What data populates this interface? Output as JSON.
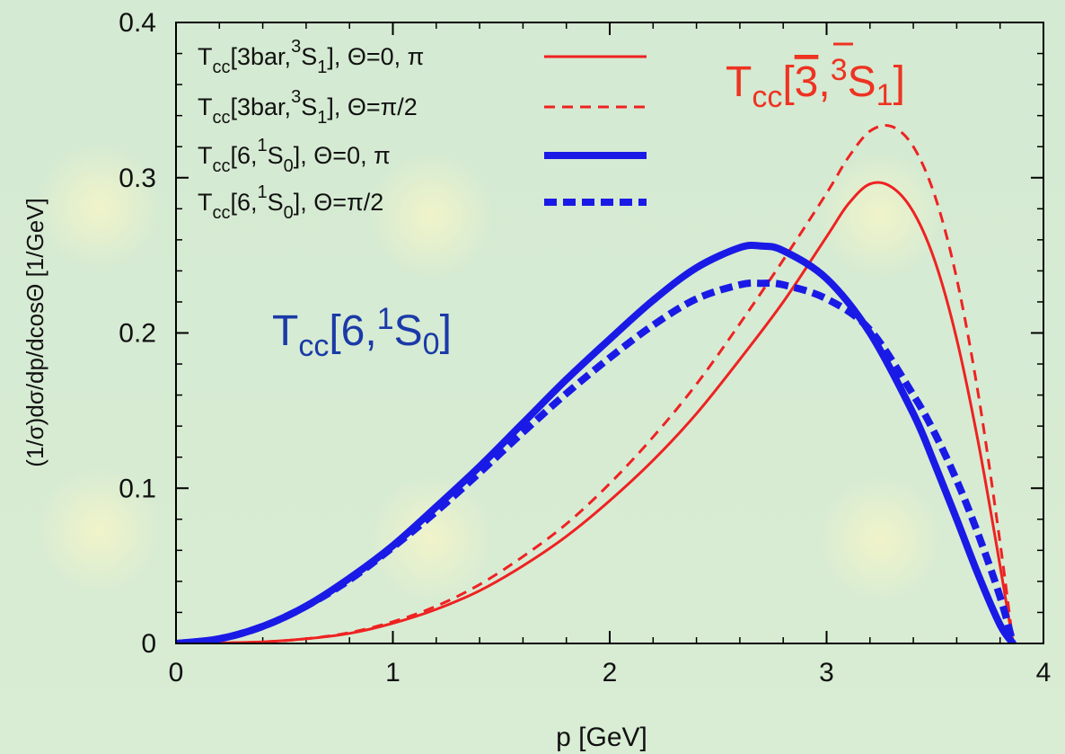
{
  "chart_data": {
    "type": "line",
    "xlabel": "p [GeV]",
    "ylabel": "(1/σ)dσ/dp/dcosΘ  [1/GeV]",
    "xlim": [
      0,
      4
    ],
    "ylim": [
      0,
      0.4
    ],
    "x_ticks": [
      "0",
      "1",
      "2",
      "3",
      "4"
    ],
    "y_ticks": [
      "0",
      "0.1",
      "0.2",
      "0.3",
      "0.4"
    ],
    "legend_position": "top-left",
    "grid": false,
    "series": [
      {
        "name": "Tcc[3bar,3S1], Θ=0, π",
        "legend": {
          "base": "T",
          "sub1": "cc",
          "mid": "[3bar,",
          "sup": "3",
          "mid2": "S",
          "sub2": "1",
          "tail": "], Θ=0, π"
        },
        "color": "#ee2222",
        "dash": "solid",
        "width": 3,
        "x": [
          0,
          0.2,
          0.4,
          0.6,
          0.8,
          1.0,
          1.2,
          1.4,
          1.6,
          1.8,
          2.0,
          2.2,
          2.4,
          2.6,
          2.8,
          3.0,
          3.1,
          3.2,
          3.3,
          3.4,
          3.5,
          3.6,
          3.7,
          3.8,
          3.86
        ],
        "y": [
          0,
          0.0003,
          0.001,
          0.003,
          0.0065,
          0.013,
          0.022,
          0.034,
          0.05,
          0.069,
          0.092,
          0.118,
          0.148,
          0.183,
          0.22,
          0.262,
          0.283,
          0.296,
          0.294,
          0.278,
          0.246,
          0.196,
          0.129,
          0.05,
          0
        ]
      },
      {
        "name": "Tcc[3bar,3S1], Θ=π/2",
        "legend": {
          "base": "T",
          "sub1": "cc",
          "mid": "[3bar,",
          "sup": "3",
          "mid2": "S",
          "sub2": "1",
          "tail": "], Θ=π/2"
        },
        "color": "#ee2222",
        "dash": "dashed",
        "width": 3,
        "x": [
          0,
          0.2,
          0.4,
          0.6,
          0.8,
          1.0,
          1.2,
          1.4,
          1.6,
          1.8,
          2.0,
          2.2,
          2.4,
          2.6,
          2.8,
          3.0,
          3.1,
          3.2,
          3.3,
          3.4,
          3.5,
          3.6,
          3.7,
          3.8,
          3.86
        ],
        "y": [
          0,
          0.0003,
          0.001,
          0.003,
          0.007,
          0.014,
          0.024,
          0.038,
          0.056,
          0.077,
          0.103,
          0.133,
          0.167,
          0.206,
          0.247,
          0.29,
          0.313,
          0.33,
          0.333,
          0.32,
          0.288,
          0.235,
          0.16,
          0.065,
          0
        ]
      },
      {
        "name": "Tcc[6,1S0], Θ=0, π",
        "legend": {
          "base": "T",
          "sub1": "cc",
          "mid": "[6,",
          "sup": "1",
          "mid2": "S",
          "sub2": "0",
          "tail": "], Θ=0, π"
        },
        "color": "#1a1ae6",
        "dash": "solid",
        "width": 8,
        "x": [
          0,
          0.2,
          0.4,
          0.6,
          0.8,
          1.0,
          1.2,
          1.4,
          1.6,
          1.8,
          2.0,
          2.2,
          2.4,
          2.6,
          2.7,
          2.8,
          3.0,
          3.2,
          3.4,
          3.5,
          3.6,
          3.7,
          3.8,
          3.86
        ],
        "y": [
          0,
          0.003,
          0.011,
          0.024,
          0.042,
          0.063,
          0.088,
          0.114,
          0.142,
          0.17,
          0.196,
          0.221,
          0.242,
          0.255,
          0.256,
          0.253,
          0.235,
          0.2,
          0.148,
          0.115,
          0.08,
          0.044,
          0.012,
          0
        ]
      },
      {
        "name": "Tcc[6,1S0], Θ=π/2",
        "legend": {
          "base": "T",
          "sub1": "cc",
          "mid": "[6,",
          "sup": "1",
          "mid2": "S",
          "sub2": "0",
          "tail": "], Θ=π/2"
        },
        "color": "#1a1ae6",
        "dash": "dashed",
        "width": 8,
        "x": [
          0,
          0.2,
          0.4,
          0.6,
          0.8,
          1.0,
          1.2,
          1.4,
          1.6,
          1.8,
          2.0,
          2.2,
          2.4,
          2.6,
          2.7,
          2.8,
          3.0,
          3.2,
          3.4,
          3.5,
          3.6,
          3.7,
          3.8,
          3.86
        ],
        "y": [
          0,
          0.003,
          0.011,
          0.024,
          0.041,
          0.062,
          0.085,
          0.11,
          0.136,
          0.161,
          0.184,
          0.205,
          0.222,
          0.231,
          0.232,
          0.231,
          0.222,
          0.202,
          0.16,
          0.135,
          0.105,
          0.07,
          0.03,
          0
        ]
      }
    ],
    "annotations": [
      {
        "id": "ann-3bar",
        "color": "#ee3322",
        "base": "T",
        "sub": "cc",
        "open": "[",
        "overline": "3",
        "comma": ",",
        "sup": "3",
        "mid": "S",
        "sub2": "1",
        "close": "]"
      },
      {
        "id": "ann-6",
        "color": "#1a3aa8",
        "base": "T",
        "sub": "cc",
        "open": "[",
        "body": "6,",
        "sup": "1",
        "mid": "S",
        "sub2": "0",
        "close": "]"
      }
    ]
  }
}
